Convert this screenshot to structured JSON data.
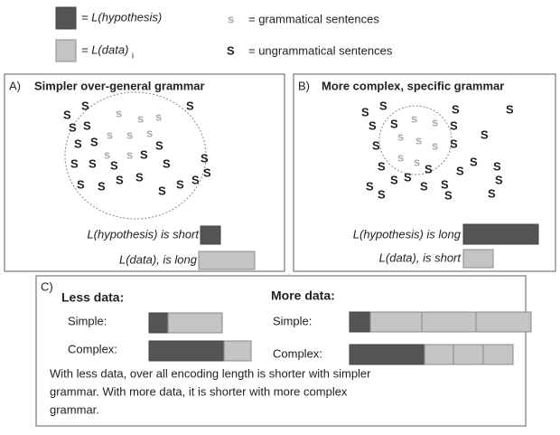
{
  "legend": {
    "hypothesis": "= L(hypothesis)",
    "data": "= L(data)",
    "data_subscript": "i",
    "grammatical_symbol": "s",
    "grammatical": "= grammatical sentences",
    "ungrammatical_symbol": "S",
    "ungrammatical": "= ungrammatical sentences"
  },
  "panel_a": {
    "letter": "A)",
    "title": "Simpler over-general grammar",
    "hypothesis_text": "L(hypothesis) is short",
    "data_text": "L(data), is long"
  },
  "panel_b": {
    "letter": "B)",
    "title": "More complex, specific grammar",
    "hypothesis_text": "L(hypothesis) is long",
    "data_text": "L(data), is short"
  },
  "panel_c": {
    "letter": "C)",
    "less_title": "Less data:",
    "more_title": "More data:",
    "simple": "Simple:",
    "complex": "Complex:",
    "caption": [
      "With less data, over all encoding length is shorter with simpler",
      "grammar.  With more data, it is shorter with more complex",
      "grammar."
    ]
  }
}
